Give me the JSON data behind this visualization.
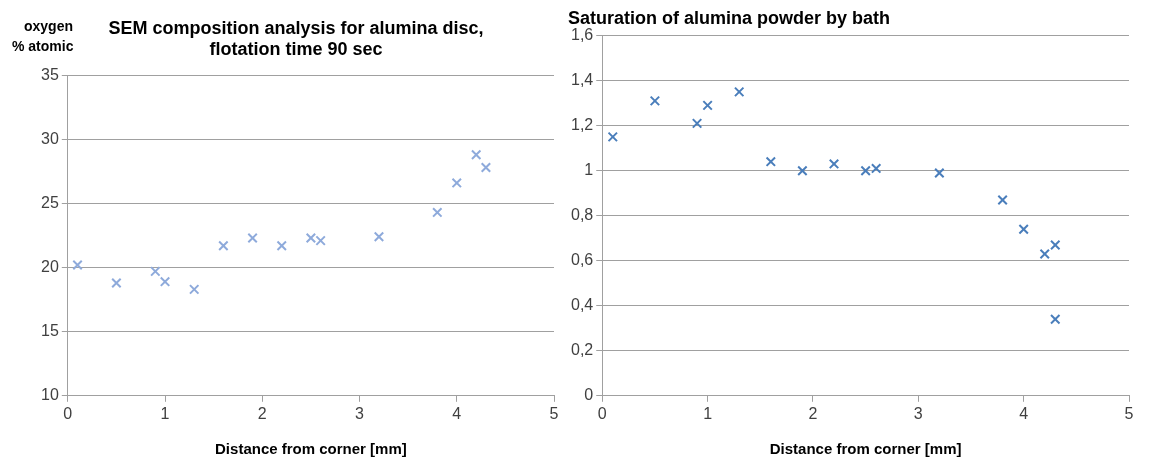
{
  "chart_data": [
    {
      "type": "scatter",
      "title": [
        "SEM composition analysis for alumina disc,",
        "flotation time 90 sec"
      ],
      "xlabel": "Distance from corner [mm]",
      "ylabel": [
        "oxygen",
        "% atomic"
      ],
      "xlim": [
        0,
        5
      ],
      "xticks": [
        0,
        1,
        2,
        3,
        4,
        5
      ],
      "ylim": [
        10,
        35
      ],
      "yticks": [
        10,
        15,
        20,
        25,
        30,
        35
      ],
      "grid": "y",
      "legend": false,
      "marker": "cross",
      "series": [
        {
          "color": "#8eaadb",
          "x": [
            0.1,
            0.5,
            0.9,
            1.0,
            1.3,
            1.6,
            1.9,
            2.2,
            2.5,
            2.6,
            3.2,
            3.8,
            4.0,
            4.2,
            4.3
          ],
          "values": [
            20.2,
            18.8,
            19.7,
            18.9,
            18.3,
            21.7,
            22.3,
            21.7,
            22.3,
            22.1,
            22.4,
            24.3,
            26.6,
            28.8,
            27.8
          ]
        }
      ]
    },
    {
      "type": "scatter",
      "title": "Saturation of alumina powder by bath",
      "xlabel": "Distance from corner [mm]",
      "xlim": [
        0,
        5
      ],
      "xticks": [
        0,
        1,
        2,
        3,
        4,
        5
      ],
      "ylim": [
        0,
        1.6
      ],
      "yticks": [
        0,
        {
          "value": 0.2,
          "label": "0,2"
        },
        {
          "value": 0.4,
          "label": "0,4"
        },
        {
          "value": 0.6,
          "label": "0,6"
        },
        {
          "value": 0.8,
          "label": "0,8"
        },
        1,
        {
          "value": 1.2,
          "label": "1,2"
        },
        {
          "value": 1.4,
          "label": "1,4"
        },
        {
          "value": 1.6,
          "label": "1,6"
        }
      ],
      "grid": "y",
      "legend": false,
      "marker": "cross",
      "series": [
        {
          "color": "#4a7ebb",
          "x": [
            0.1,
            0.5,
            0.9,
            1.0,
            1.3,
            1.6,
            1.9,
            2.2,
            2.5,
            2.6,
            3.2,
            3.8,
            4.0,
            4.2,
            4.3,
            4.3
          ],
          "values": [
            1.15,
            1.31,
            1.21,
            1.29,
            1.35,
            1.04,
            1.0,
            1.03,
            1.0,
            1.01,
            0.99,
            0.87,
            0.74,
            0.63,
            0.67,
            0.34
          ]
        }
      ]
    }
  ]
}
